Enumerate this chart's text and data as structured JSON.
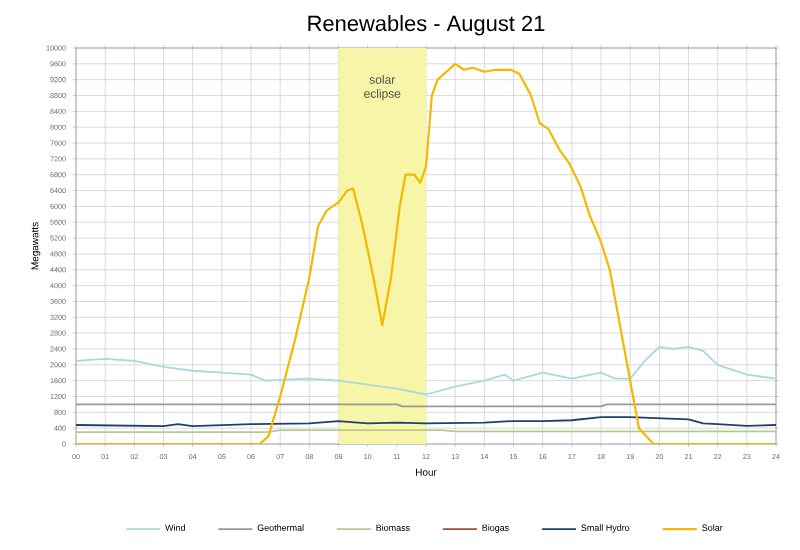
{
  "chart_data": {
    "type": "line",
    "title": "Renewables - August 21",
    "xlabel": "Hour",
    "ylabel": "Megawatts",
    "xlim": [
      0,
      24
    ],
    "xticks": [
      {
        "value": 0,
        "label": "00"
      },
      {
        "value": 1,
        "label": "01"
      },
      {
        "value": 2,
        "label": "02"
      },
      {
        "value": 3,
        "label": "03"
      },
      {
        "value": 4,
        "label": "04"
      },
      {
        "value": 5,
        "label": "05"
      },
      {
        "value": 6,
        "label": "06"
      },
      {
        "value": 7,
        "label": "07"
      },
      {
        "value": 8,
        "label": "08"
      },
      {
        "value": 9,
        "label": "09"
      },
      10,
      11,
      12,
      13,
      14,
      15,
      16,
      17,
      18,
      19,
      20,
      21,
      22,
      23,
      24
    ],
    "ylim": [
      0,
      10000
    ],
    "yticks": [
      0,
      400,
      800,
      1200,
      1600,
      2000,
      2400,
      2800,
      3200,
      3600,
      4000,
      4400,
      4800,
      5200,
      5600,
      6000,
      6400,
      6800,
      7200,
      7600,
      8000,
      8400,
      8800,
      9200,
      9600,
      10000
    ],
    "grid": true,
    "legend": "bottom",
    "marker": "none",
    "line_style": "solid",
    "bands": [
      {
        "axis": "x",
        "from": 9,
        "to": 12,
        "label": "solar eclipse",
        "color": "#f7f5a8"
      }
    ],
    "series": [
      {
        "name": "Wind",
        "color": "#a8d8e0",
        "x": [
          0,
          1,
          2,
          3,
          4,
          5,
          6,
          6.5,
          7,
          8,
          9,
          10,
          11,
          12,
          13,
          14,
          14.7,
          15,
          15.5,
          16,
          17,
          18,
          18.5,
          19,
          19.5,
          20,
          20.5,
          21,
          21.5,
          22,
          23,
          24
        ],
        "values": [
          2100,
          2150,
          2100,
          1950,
          1850,
          1800,
          1750,
          1600,
          1620,
          1650,
          1600,
          1500,
          1400,
          1250,
          1450,
          1600,
          1750,
          1600,
          1700,
          1800,
          1650,
          1800,
          1650,
          1650,
          2100,
          2450,
          2400,
          2450,
          2350,
          2000,
          1750,
          1650
        ]
      },
      {
        "name": "Geothermal",
        "color": "#999999",
        "x": [
          0,
          11,
          11.2,
          18,
          18.2,
          24
        ],
        "values": [
          1000,
          1000,
          950,
          950,
          1000,
          1000
        ]
      },
      {
        "name": "Biomass",
        "color": "#b5cc8e",
        "x": [
          0,
          6.6,
          7,
          12.5,
          13,
          24
        ],
        "values": [
          300,
          300,
          350,
          350,
          320,
          320
        ]
      },
      {
        "name": "Biogas",
        "color": "#a0522d"
      },
      {
        "name": "Small Hydro",
        "color": "#1f3f6e",
        "x": [
          0,
          3,
          3.5,
          4,
          6,
          8,
          9,
          10,
          11,
          12,
          14,
          15,
          16,
          17,
          18,
          19,
          20,
          21,
          21.5,
          22,
          23,
          24
        ],
        "values": [
          480,
          450,
          500,
          450,
          500,
          520,
          580,
          520,
          540,
          520,
          540,
          580,
          580,
          600,
          680,
          680,
          650,
          620,
          520,
          500,
          460,
          480
        ]
      },
      {
        "name": "Solar",
        "color": "#f5b800",
        "x": [
          0,
          6.3,
          6.6,
          7,
          7.5,
          8,
          8.3,
          8.6,
          9,
          9.3,
          9.5,
          9.8,
          10.2,
          10.5,
          10.8,
          11.1,
          11.3,
          11.6,
          11.8,
          12,
          12.2,
          12.4,
          12.7,
          13,
          13.3,
          13.6,
          14,
          14.4,
          14.9,
          15.2,
          15.6,
          15.9,
          16.2,
          16.6,
          16.9,
          17.3,
          17.6,
          18,
          18.3,
          18.8,
          19.1,
          19.3,
          19.8,
          24
        ],
        "values": [
          0,
          0,
          200,
          1200,
          2600,
          4200,
          5500,
          5900,
          6100,
          6400,
          6450,
          5600,
          4200,
          3000,
          4200,
          6000,
          6800,
          6800,
          6600,
          7000,
          8800,
          9200,
          9400,
          9600,
          9450,
          9500,
          9400,
          9450,
          9450,
          9350,
          8800,
          8100,
          7950,
          7400,
          7100,
          6500,
          5800,
          5100,
          4400,
          2400,
          1200,
          400,
          0,
          0
        ]
      }
    ]
  }
}
